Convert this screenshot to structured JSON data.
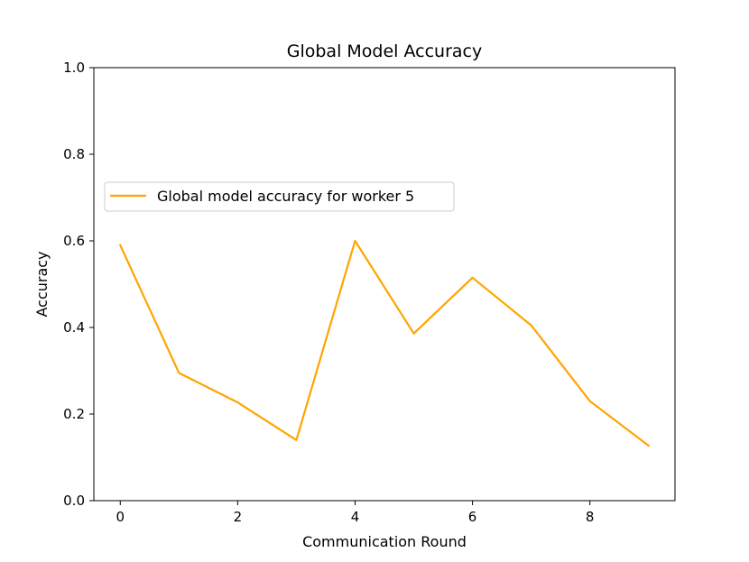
{
  "chart_data": {
    "type": "line",
    "title": "Global Model Accuracy",
    "xlabel": "Communication Round",
    "ylabel": "Accuracy",
    "xlim": [
      -0.45,
      9.45
    ],
    "ylim": [
      0.0,
      1.0
    ],
    "xticks": [
      "0",
      "2",
      "4",
      "6",
      "8"
    ],
    "yticks": [
      "0.0",
      "0.2",
      "0.4",
      "0.6",
      "0.8",
      "1.0"
    ],
    "grid": false,
    "legend_position": "center-left",
    "series": [
      {
        "name": "Global model accuracy for worker 5",
        "color": "#ffa500",
        "x": [
          0,
          1,
          2,
          3,
          4,
          5,
          6,
          7,
          8,
          9
        ],
        "y": [
          0.59,
          0.295,
          0.227,
          0.14,
          0.6,
          0.386,
          0.515,
          0.405,
          0.23,
          0.127
        ]
      }
    ]
  }
}
